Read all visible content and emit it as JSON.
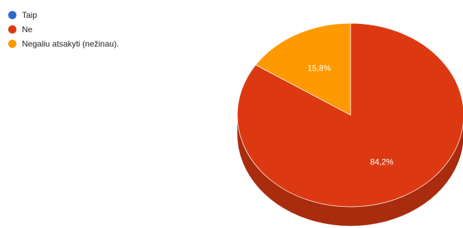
{
  "chart_data": {
    "type": "pie",
    "title": "",
    "slices": [
      {
        "label": "Taip",
        "value": 0.0,
        "color": "#3366cc",
        "data_label": ""
      },
      {
        "label": "Ne",
        "value": 84.2,
        "color": "#dc3912",
        "side_color": "#a92c0e",
        "data_label": "84,2%"
      },
      {
        "label": "Negaliu atsakyti (nežinau).",
        "value": 15.8,
        "color": "#ff9900",
        "side_color": "#c47600",
        "data_label": "15,8%"
      }
    ],
    "legend_position": "top-left",
    "three_d": true
  }
}
